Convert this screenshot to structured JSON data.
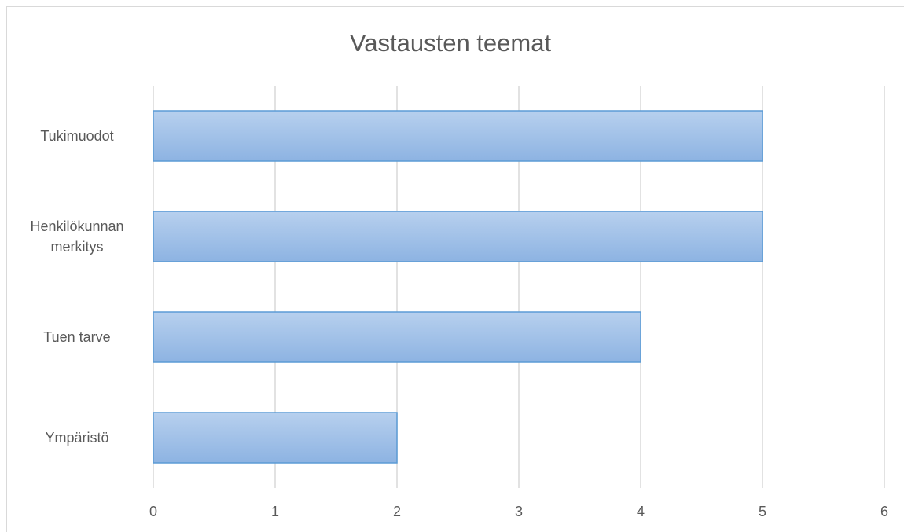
{
  "chart_data": {
    "type": "bar",
    "orientation": "horizontal",
    "title": "Vastausten teemat",
    "categories": [
      "Tukimuodot",
      "Henkilökunnan merkitys",
      "Tuen tarve",
      "Ympäristö"
    ],
    "values": [
      5,
      5,
      4,
      2
    ],
    "color": "#5b9bd5",
    "xlim": [
      0,
      6
    ],
    "xticks": [
      0,
      1,
      2,
      3,
      4,
      5,
      6
    ],
    "grid": true
  }
}
